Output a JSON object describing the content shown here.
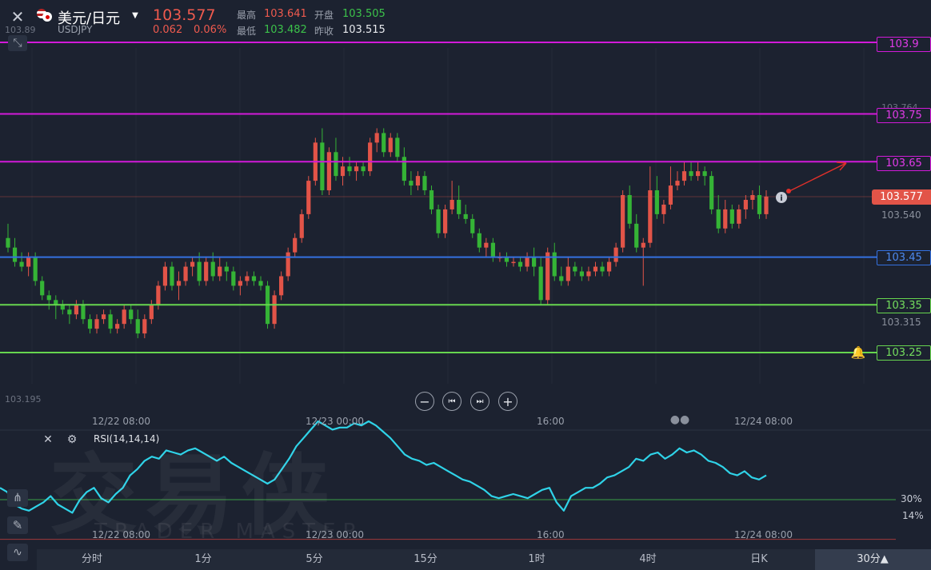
{
  "header": {
    "pair_name": "美元/日元",
    "symbol": "USDJPY",
    "price": "103.577",
    "change": "0.062",
    "change_pct": "0.06%",
    "high_label": "最高",
    "high": "103.641",
    "open_label": "开盘",
    "open": "103.505",
    "low_label": "最低",
    "low": "103.482",
    "prev_close_label": "昨收",
    "prev_close": "103.515"
  },
  "colors": {
    "up": "#e25448",
    "down": "#35b436",
    "magenta": "#d21ad9",
    "blue": "#3471e0",
    "green": "#67d64f",
    "rsi": "#2fd3e8",
    "background": "#1c2230"
  },
  "price_axis": {
    "ticks": [
      "103.89",
      "103.764",
      "103.540",
      "103.315",
      "103.195"
    ],
    "current_price_label": "103.577"
  },
  "levels": [
    {
      "label": "103.9",
      "value": 103.9,
      "color": "#d21ad9"
    },
    {
      "label": "103.75",
      "value": 103.75,
      "color": "#d21ad9"
    },
    {
      "label": "103.65",
      "value": 103.65,
      "color": "#d21ad9"
    },
    {
      "label": "103.45",
      "value": 103.45,
      "color": "#3471e0"
    },
    {
      "label": "103.35",
      "value": 103.35,
      "color": "#67d64f"
    },
    {
      "label": "103.25",
      "value": 103.25,
      "color": "#67d64f"
    }
  ],
  "time_axis": {
    "labels": [
      "12/22 08:00",
      "12/23 00:00",
      "16:00",
      "12/24 08:00"
    ]
  },
  "rsi": {
    "title": "RSI(14,14,14)",
    "level_30": "30%",
    "level_14": "14%"
  },
  "watermark": {
    "brand": "交易侠",
    "sub": "TRADER MASTER"
  },
  "timeframes": [
    "分时",
    "1分",
    "5分",
    "15分",
    "1时",
    "4时",
    "日K",
    "30分▲"
  ],
  "chart_data": {
    "type": "candlestick",
    "symbol": "USDJPY",
    "interval": "30分",
    "x_labels": [
      "12/22 08:00",
      "12/23 00:00",
      "16:00",
      "12/24 08:00"
    ],
    "y_range": [
      103.195,
      103.91
    ],
    "candles": [
      {
        "o": 103.49,
        "h": 103.52,
        "l": 103.46,
        "c": 103.47
      },
      {
        "o": 103.47,
        "h": 103.49,
        "l": 103.43,
        "c": 103.44
      },
      {
        "o": 103.44,
        "h": 103.46,
        "l": 103.42,
        "c": 103.43
      },
      {
        "o": 103.43,
        "h": 103.46,
        "l": 103.41,
        "c": 103.45
      },
      {
        "o": 103.45,
        "h": 103.46,
        "l": 103.39,
        "c": 103.4
      },
      {
        "o": 103.4,
        "h": 103.41,
        "l": 103.36,
        "c": 103.37
      },
      {
        "o": 103.37,
        "h": 103.38,
        "l": 103.34,
        "c": 103.36
      },
      {
        "o": 103.36,
        "h": 103.37,
        "l": 103.32,
        "c": 103.35
      },
      {
        "o": 103.35,
        "h": 103.36,
        "l": 103.33,
        "c": 103.34
      },
      {
        "o": 103.34,
        "h": 103.35,
        "l": 103.31,
        "c": 103.33
      },
      {
        "o": 103.33,
        "h": 103.36,
        "l": 103.32,
        "c": 103.35
      },
      {
        "o": 103.35,
        "h": 103.36,
        "l": 103.31,
        "c": 103.32
      },
      {
        "o": 103.32,
        "h": 103.33,
        "l": 103.29,
        "c": 103.3
      },
      {
        "o": 103.3,
        "h": 103.33,
        "l": 103.29,
        "c": 103.32
      },
      {
        "o": 103.32,
        "h": 103.34,
        "l": 103.31,
        "c": 103.33
      },
      {
        "o": 103.33,
        "h": 103.34,
        "l": 103.29,
        "c": 103.3
      },
      {
        "o": 103.3,
        "h": 103.32,
        "l": 103.29,
        "c": 103.31
      },
      {
        "o": 103.31,
        "h": 103.35,
        "l": 103.3,
        "c": 103.34
      },
      {
        "o": 103.34,
        "h": 103.35,
        "l": 103.31,
        "c": 103.32
      },
      {
        "o": 103.32,
        "h": 103.34,
        "l": 103.28,
        "c": 103.29
      },
      {
        "o": 103.29,
        "h": 103.33,
        "l": 103.28,
        "c": 103.32
      },
      {
        "o": 103.32,
        "h": 103.36,
        "l": 103.31,
        "c": 103.35
      },
      {
        "o": 103.35,
        "h": 103.4,
        "l": 103.34,
        "c": 103.39
      },
      {
        "o": 103.39,
        "h": 103.44,
        "l": 103.38,
        "c": 103.43
      },
      {
        "o": 103.43,
        "h": 103.44,
        "l": 103.38,
        "c": 103.39
      },
      {
        "o": 103.39,
        "h": 103.42,
        "l": 103.36,
        "c": 103.4
      },
      {
        "o": 103.4,
        "h": 103.44,
        "l": 103.39,
        "c": 103.43
      },
      {
        "o": 103.43,
        "h": 103.45,
        "l": 103.41,
        "c": 103.44
      },
      {
        "o": 103.44,
        "h": 103.46,
        "l": 103.39,
        "c": 103.4
      },
      {
        "o": 103.4,
        "h": 103.45,
        "l": 103.39,
        "c": 103.44
      },
      {
        "o": 103.44,
        "h": 103.46,
        "l": 103.4,
        "c": 103.41
      },
      {
        "o": 103.41,
        "h": 103.45,
        "l": 103.4,
        "c": 103.43
      },
      {
        "o": 103.43,
        "h": 103.44,
        "l": 103.4,
        "c": 103.42
      },
      {
        "o": 103.42,
        "h": 103.43,
        "l": 103.38,
        "c": 103.39
      },
      {
        "o": 103.39,
        "h": 103.41,
        "l": 103.37,
        "c": 103.4
      },
      {
        "o": 103.4,
        "h": 103.42,
        "l": 103.39,
        "c": 103.41
      },
      {
        "o": 103.41,
        "h": 103.42,
        "l": 103.39,
        "c": 103.4
      },
      {
        "o": 103.4,
        "h": 103.41,
        "l": 103.38,
        "c": 103.39
      },
      {
        "o": 103.39,
        "h": 103.4,
        "l": 103.3,
        "c": 103.31
      },
      {
        "o": 103.31,
        "h": 103.38,
        "l": 103.3,
        "c": 103.37
      },
      {
        "o": 103.37,
        "h": 103.42,
        "l": 103.36,
        "c": 103.41
      },
      {
        "o": 103.41,
        "h": 103.47,
        "l": 103.4,
        "c": 103.46
      },
      {
        "o": 103.46,
        "h": 103.5,
        "l": 103.45,
        "c": 103.49
      },
      {
        "o": 103.49,
        "h": 103.55,
        "l": 103.48,
        "c": 103.54
      },
      {
        "o": 103.54,
        "h": 103.62,
        "l": 103.53,
        "c": 103.61
      },
      {
        "o": 103.61,
        "h": 103.7,
        "l": 103.6,
        "c": 103.69
      },
      {
        "o": 103.69,
        "h": 103.72,
        "l": 103.58,
        "c": 103.59
      },
      {
        "o": 103.59,
        "h": 103.68,
        "l": 103.58,
        "c": 103.67
      },
      {
        "o": 103.67,
        "h": 103.7,
        "l": 103.61,
        "c": 103.62
      },
      {
        "o": 103.62,
        "h": 103.66,
        "l": 103.6,
        "c": 103.64
      },
      {
        "o": 103.64,
        "h": 103.66,
        "l": 103.62,
        "c": 103.63
      },
      {
        "o": 103.63,
        "h": 103.65,
        "l": 103.61,
        "c": 103.64
      },
      {
        "o": 103.64,
        "h": 103.65,
        "l": 103.62,
        "c": 103.63
      },
      {
        "o": 103.63,
        "h": 103.7,
        "l": 103.62,
        "c": 103.69
      },
      {
        "o": 103.69,
        "h": 103.72,
        "l": 103.67,
        "c": 103.71
      },
      {
        "o": 103.71,
        "h": 103.72,
        "l": 103.66,
        "c": 103.67
      },
      {
        "o": 103.67,
        "h": 103.71,
        "l": 103.66,
        "c": 103.7
      },
      {
        "o": 103.7,
        "h": 103.71,
        "l": 103.65,
        "c": 103.66
      },
      {
        "o": 103.66,
        "h": 103.68,
        "l": 103.6,
        "c": 103.61
      },
      {
        "o": 103.61,
        "h": 103.63,
        "l": 103.58,
        "c": 103.6
      },
      {
        "o": 103.6,
        "h": 103.63,
        "l": 103.59,
        "c": 103.62
      },
      {
        "o": 103.62,
        "h": 103.63,
        "l": 103.58,
        "c": 103.59
      },
      {
        "o": 103.59,
        "h": 103.6,
        "l": 103.54,
        "c": 103.55
      },
      {
        "o": 103.55,
        "h": 103.56,
        "l": 103.49,
        "c": 103.5
      },
      {
        "o": 103.5,
        "h": 103.56,
        "l": 103.49,
        "c": 103.55
      },
      {
        "o": 103.55,
        "h": 103.61,
        "l": 103.54,
        "c": 103.57
      },
      {
        "o": 103.57,
        "h": 103.6,
        "l": 103.53,
        "c": 103.54
      },
      {
        "o": 103.54,
        "h": 103.56,
        "l": 103.52,
        "c": 103.53
      },
      {
        "o": 103.53,
        "h": 103.54,
        "l": 103.49,
        "c": 103.5
      },
      {
        "o": 103.5,
        "h": 103.51,
        "l": 103.46,
        "c": 103.47
      },
      {
        "o": 103.47,
        "h": 103.49,
        "l": 103.45,
        "c": 103.48
      },
      {
        "o": 103.48,
        "h": 103.49,
        "l": 103.44,
        "c": 103.45
      },
      {
        "o": 103.45,
        "h": 103.46,
        "l": 103.44,
        "c": 103.45
      },
      {
        "o": 103.45,
        "h": 103.46,
        "l": 103.43,
        "c": 103.44
      },
      {
        "o": 103.44,
        "h": 103.45,
        "l": 103.43,
        "c": 103.44
      },
      {
        "o": 103.44,
        "h": 103.45,
        "l": 103.42,
        "c": 103.43
      },
      {
        "o": 103.43,
        "h": 103.46,
        "l": 103.42,
        "c": 103.45
      },
      {
        "o": 103.45,
        "h": 103.47,
        "l": 103.41,
        "c": 103.43
      },
      {
        "o": 103.43,
        "h": 103.45,
        "l": 103.35,
        "c": 103.36
      },
      {
        "o": 103.36,
        "h": 103.47,
        "l": 103.35,
        "c": 103.46
      },
      {
        "o": 103.46,
        "h": 103.48,
        "l": 103.4,
        "c": 103.41
      },
      {
        "o": 103.41,
        "h": 103.43,
        "l": 103.39,
        "c": 103.4
      },
      {
        "o": 103.4,
        "h": 103.45,
        "l": 103.39,
        "c": 103.43
      },
      {
        "o": 103.43,
        "h": 103.44,
        "l": 103.41,
        "c": 103.42
      },
      {
        "o": 103.42,
        "h": 103.43,
        "l": 103.4,
        "c": 103.41
      },
      {
        "o": 103.41,
        "h": 103.43,
        "l": 103.4,
        "c": 103.42
      },
      {
        "o": 103.42,
        "h": 103.44,
        "l": 103.41,
        "c": 103.43
      },
      {
        "o": 103.43,
        "h": 103.44,
        "l": 103.41,
        "c": 103.42
      },
      {
        "o": 103.42,
        "h": 103.45,
        "l": 103.41,
        "c": 103.44
      },
      {
        "o": 103.44,
        "h": 103.48,
        "l": 103.43,
        "c": 103.47
      },
      {
        "o": 103.47,
        "h": 103.59,
        "l": 103.46,
        "c": 103.58
      },
      {
        "o": 103.58,
        "h": 103.6,
        "l": 103.51,
        "c": 103.52
      },
      {
        "o": 103.52,
        "h": 103.54,
        "l": 103.46,
        "c": 103.47
      },
      {
        "o": 103.47,
        "h": 103.49,
        "l": 103.39,
        "c": 103.48
      },
      {
        "o": 103.48,
        "h": 103.64,
        "l": 103.47,
        "c": 103.59
      },
      {
        "o": 103.59,
        "h": 103.62,
        "l": 103.53,
        "c": 103.54
      },
      {
        "o": 103.54,
        "h": 103.57,
        "l": 103.52,
        "c": 103.56
      },
      {
        "o": 103.56,
        "h": 103.64,
        "l": 103.55,
        "c": 103.6
      },
      {
        "o": 103.6,
        "h": 103.63,
        "l": 103.59,
        "c": 103.61
      },
      {
        "o": 103.61,
        "h": 103.65,
        "l": 103.6,
        "c": 103.63
      },
      {
        "o": 103.63,
        "h": 103.65,
        "l": 103.61,
        "c": 103.62
      },
      {
        "o": 103.62,
        "h": 103.65,
        "l": 103.61,
        "c": 103.63
      },
      {
        "o": 103.63,
        "h": 103.64,
        "l": 103.6,
        "c": 103.62
      },
      {
        "o": 103.62,
        "h": 103.63,
        "l": 103.54,
        "c": 103.55
      },
      {
        "o": 103.55,
        "h": 103.58,
        "l": 103.5,
        "c": 103.51
      },
      {
        "o": 103.51,
        "h": 103.57,
        "l": 103.5,
        "c": 103.55
      },
      {
        "o": 103.55,
        "h": 103.56,
        "l": 103.51,
        "c": 103.52
      },
      {
        "o": 103.52,
        "h": 103.56,
        "l": 103.51,
        "c": 103.55
      },
      {
        "o": 103.55,
        "h": 103.58,
        "l": 103.53,
        "c": 103.57
      },
      {
        "o": 103.57,
        "h": 103.59,
        "l": 103.55,
        "c": 103.58
      },
      {
        "o": 103.58,
        "h": 103.6,
        "l": 103.53,
        "c": 103.54
      },
      {
        "o": 103.54,
        "h": 103.59,
        "l": 103.53,
        "c": 103.577
      }
    ],
    "rsi_series": [
      38,
      36,
      30,
      28,
      27,
      29,
      31,
      34,
      30,
      28,
      26,
      32,
      36,
      38,
      33,
      31,
      35,
      38,
      44,
      47,
      51,
      53,
      52,
      56,
      55,
      54,
      56,
      57,
      55,
      53,
      51,
      53,
      50,
      48,
      46,
      44,
      42,
      40,
      42,
      47,
      52,
      58,
      62,
      66,
      70,
      68,
      66,
      67,
      67,
      69,
      68,
      70,
      68,
      65,
      62,
      58,
      54,
      52,
      51,
      49,
      50,
      48,
      46,
      44,
      42,
      41,
      39,
      37,
      34,
      33,
      34,
      35,
      34,
      33,
      35,
      37,
      38,
      31,
      27,
      34,
      36,
      38,
      38,
      40,
      43,
      44,
      46,
      48,
      52,
      51,
      54,
      55,
      52,
      54,
      57,
      55,
      56,
      54,
      51,
      50,
      48,
      45,
      44,
      46,
      43,
      42,
      44
    ],
    "rsi_levels": [
      30,
      14
    ]
  }
}
